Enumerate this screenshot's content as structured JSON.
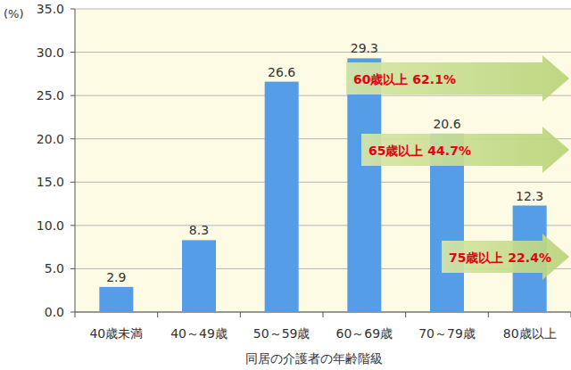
{
  "chart_data": {
    "type": "bar",
    "y_label": "(%)",
    "x_label": "同居の介護者の年齢階級",
    "categories": [
      "40歳未満",
      "40～49歳",
      "50～59歳",
      "60～69歳",
      "70～79歳",
      "80歳以上"
    ],
    "values": [
      2.9,
      8.3,
      26.6,
      29.3,
      20.6,
      12.3
    ],
    "color": "#559de6",
    "ylim": [
      0,
      35
    ],
    "yticks": [
      {
        "value": 0,
        "label": "0.0"
      },
      {
        "value": 5,
        "label": "5.0"
      },
      {
        "value": 10,
        "label": "10.0"
      },
      {
        "value": 15,
        "label": "15.0"
      },
      {
        "value": 20,
        "label": "20.0"
      },
      {
        "value": 25,
        "label": "25.0"
      },
      {
        "value": 30,
        "label": "30.0"
      },
      {
        "value": 35,
        "label": "35.0"
      }
    ],
    "grid": true,
    "data_labels": true,
    "annotations": [
      "60歳以上 62.1%",
      "65歳以上 44.7%",
      "75歳以上 22.4%"
    ]
  }
}
